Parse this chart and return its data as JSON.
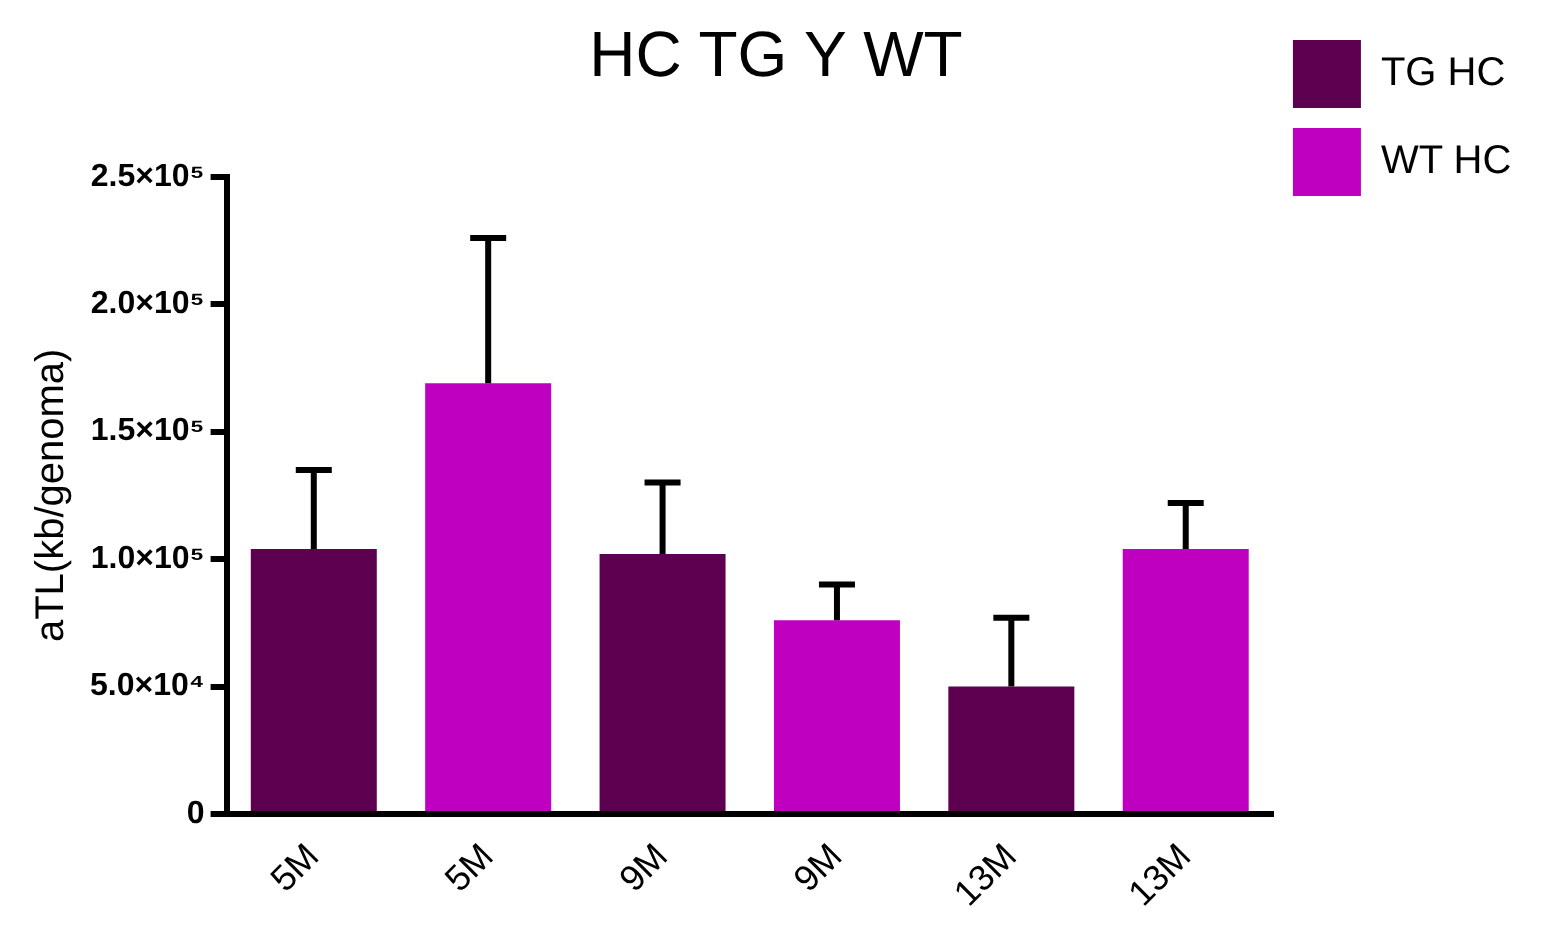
{
  "chart_data": {
    "type": "bar",
    "title": "HC TG Y WT",
    "ylabel": "aTL(kb/genoma)",
    "categories": [
      "5M",
      "5M",
      "9M",
      "9M",
      "13M",
      "13M"
    ],
    "series": [
      {
        "name": "TG HC",
        "color": "#5e0050",
        "values": [
          104000,
          null,
          102000,
          null,
          50000,
          null
        ],
        "errors": [
          [
            104000,
            135000
          ],
          null,
          [
            102000,
            130000
          ],
          null,
          [
            50000,
            77000
          ],
          null
        ]
      },
      {
        "name": "WT HC",
        "color": "#c000c0",
        "values": [
          null,
          169000,
          null,
          76000,
          null,
          104000
        ],
        "errors": [
          null,
          [
            169000,
            226000
          ],
          null,
          [
            76000,
            90000
          ],
          null,
          [
            104000,
            122000
          ]
        ]
      }
    ],
    "ylim": [
      0,
      250000
    ],
    "yticks": [
      0,
      {
        "value": 50000,
        "label": "5.0×10⁴"
      },
      {
        "value": 100000,
        "label": "1.0×10⁵"
      },
      {
        "value": 150000,
        "label": "1.5×10⁵"
      },
      {
        "value": 200000,
        "label": "2.0×10⁵"
      },
      {
        "value": 250000,
        "label": "2.5×10⁵"
      }
    ],
    "grid": false,
    "legend": "top right"
  }
}
